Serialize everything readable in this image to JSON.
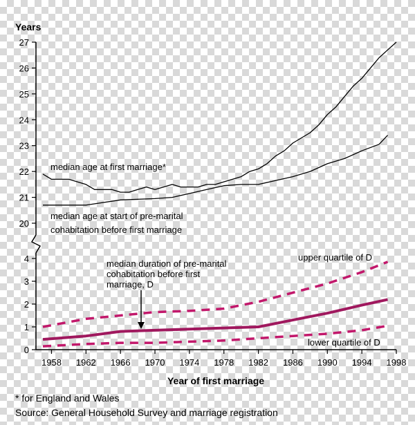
{
  "chart_data": {
    "type": "line",
    "ylabel": "Years",
    "xlabel": "Year of first marriage",
    "x_ticks": [
      "1958",
      "1962",
      "1966",
      "1970",
      "1974",
      "1978",
      "1982",
      "1986",
      "1990",
      "1994",
      "1998"
    ],
    "upper_panel": {
      "ylim": [
        20,
        27
      ],
      "y_ticks": [
        "20",
        "21",
        "22",
        "23",
        "24",
        "25",
        "26",
        "27"
      ],
      "series": [
        {
          "name": "median age at first marriage*",
          "color": "#000000",
          "x": [
            1957,
            1958,
            1960,
            1962,
            1963,
            1965,
            1966,
            1967,
            1968,
            1969,
            1970,
            1971,
            1972,
            1973,
            1974,
            1975,
            1976,
            1977,
            1978,
            1979,
            1980,
            1981,
            1982,
            1983,
            1984,
            1985,
            1986,
            1987,
            1988,
            1989,
            1990,
            1991,
            1992,
            1993,
            1994,
            1995,
            1996,
            1997,
            1998
          ],
          "values": [
            21.9,
            21.7,
            21.7,
            21.5,
            21.3,
            21.3,
            21.2,
            21.2,
            21.3,
            21.4,
            21.3,
            21.4,
            21.5,
            21.4,
            21.4,
            21.4,
            21.5,
            21.5,
            21.6,
            21.7,
            21.8,
            22.0,
            22.1,
            22.3,
            22.6,
            22.8,
            23.1,
            23.3,
            23.5,
            23.8,
            24.2,
            24.5,
            24.9,
            25.3,
            25.6,
            26.0,
            26.4,
            26.7,
            27.0
          ]
        },
        {
          "name": "median age at start of pre-marital cohabitation before first marriage",
          "color": "#000000",
          "x": [
            1957,
            1962,
            1966,
            1970,
            1972,
            1974,
            1976,
            1978,
            1980,
            1982,
            1984,
            1986,
            1988,
            1990,
            1992,
            1994,
            1996,
            1997
          ],
          "values": [
            20.7,
            20.7,
            20.9,
            20.95,
            21.0,
            21.15,
            21.3,
            21.45,
            21.5,
            21.5,
            21.65,
            21.8,
            22.0,
            22.3,
            22.5,
            22.8,
            23.05,
            23.4
          ]
        }
      ]
    },
    "lower_panel": {
      "ylim": [
        0,
        4
      ],
      "y_ticks": [
        "0",
        "1",
        "2",
        "3",
        "4"
      ],
      "series": [
        {
          "name": "median duration of pre-marital cohabitation before first marriage, D",
          "color": "#a0185e",
          "style": "solid",
          "x": [
            1957,
            1962,
            1966,
            1970,
            1974,
            1978,
            1982,
            1986,
            1990,
            1994,
            1997
          ],
          "values": [
            0.45,
            0.6,
            0.8,
            0.85,
            0.9,
            0.95,
            1.0,
            1.3,
            1.6,
            1.95,
            2.2
          ]
        },
        {
          "name": "upper quartile of D",
          "color": "#c2186b",
          "style": "dashed",
          "x": [
            1957,
            1962,
            1966,
            1970,
            1974,
            1978,
            1982,
            1986,
            1990,
            1994,
            1997
          ],
          "values": [
            1.0,
            1.35,
            1.5,
            1.65,
            1.7,
            1.8,
            2.1,
            2.5,
            2.9,
            3.4,
            3.85
          ]
        },
        {
          "name": "lower quartile of D",
          "color": "#c2186b",
          "style": "dashed",
          "x": [
            1957,
            1962,
            1966,
            1970,
            1974,
            1978,
            1982,
            1986,
            1990,
            1994,
            1997
          ],
          "values": [
            0.15,
            0.25,
            0.3,
            0.3,
            0.35,
            0.4,
            0.5,
            0.6,
            0.7,
            0.85,
            1.05
          ]
        }
      ]
    },
    "annotations": {
      "median_age_marriage": "median age at first marriage*",
      "cohab_line1": "median age at start of pre-marital",
      "cohab_line2": "cohabitation before first marriage",
      "duration_line1": "median duration of pre-marital",
      "duration_line2": "cohabitation before first",
      "duration_line3": "marriage, D",
      "upper_quartile": "upper quartile of D",
      "lower_quartile": "lower quartile of D"
    },
    "footnotes": {
      "note": "* for England and Wales",
      "source": "Source: General Household Survey and marriage registration"
    }
  }
}
